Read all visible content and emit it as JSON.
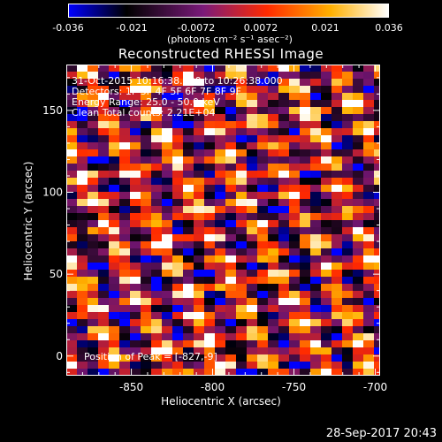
{
  "colorbar": {
    "ticks": [
      "-0.036",
      "-0.021",
      "-0.0072",
      "0.0072",
      "0.021",
      "0.036"
    ],
    "unit_label": "(photons cm⁻² s⁻¹ asec⁻²)",
    "colors": [
      "#0000ff",
      "#000000",
      "#7a1a7a",
      "#ff2a00",
      "#ffb000",
      "#ffffff"
    ]
  },
  "image": {
    "title": "Reconstructed RHESSI Image",
    "annotation_lines": [
      "31-Oct-2015 10:16:38.000 to 10:26:38.000",
      "Detectors: 1F 3F 4F 5F 6F 7F 8F 9F",
      "Energy Range: 25.0 - 50.0 keV",
      "Clean    Total counts: 2.21E+04"
    ],
    "peak_label": "Position of Peak = [-827,-9]",
    "xlabel": "Heliocentric X (arcsec)",
    "ylabel": "Heliocentric Y (arcsec)",
    "xticks": [
      "-850",
      "-800",
      "-750",
      "-700"
    ],
    "yticks": [
      "0",
      "50",
      "100",
      "150"
    ]
  },
  "footer": {
    "timestamp": "28-Sep-2017 20:43"
  },
  "chart_data": {
    "type": "heatmap",
    "title": "Reconstructed RHESSI Image",
    "xlabel": "Heliocentric X (arcsec)",
    "ylabel": "Heliocentric Y (arcsec)",
    "xlim": [
      -890,
      -697
    ],
    "ylim": [
      -12,
      178
    ],
    "colorbar_range": [
      -0.036,
      0.036
    ],
    "peak": [
      -827,
      -9
    ]
  }
}
